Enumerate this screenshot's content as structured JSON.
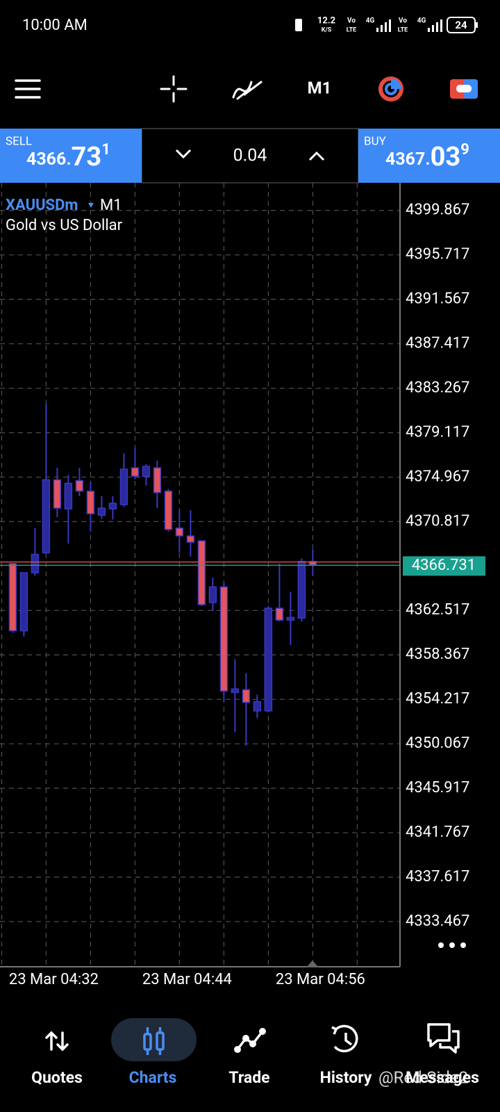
{
  "status_bar": {
    "time": "10:00 AM",
    "speed": "12.2",
    "speed_unit": "K/S",
    "sim1": "Vo",
    "sim1_sub": "LTE",
    "net1": "4G",
    "sim2": "Vo",
    "sim2_sub": "LTE",
    "net2": "4G",
    "battery": "24"
  },
  "toolbar": {
    "timeframe": "M1"
  },
  "trade_panel": {
    "sell": {
      "label": "SELL",
      "price": "4366.",
      "pips": "73",
      "point": "1"
    },
    "volume": "0.04",
    "buy": {
      "label": "BUY",
      "price": "4367.",
      "pips": "03",
      "point": "9"
    }
  },
  "chart_data": {
    "type": "candlestick",
    "symbol": "XAUUSDm",
    "timeframe": "M1",
    "description": "Gold vs US Dollar",
    "categories": [
      null,
      null,
      null,
      "23 Mar 04:32",
      null,
      null,
      null,
      null,
      null,
      null,
      null,
      null,
      null,
      null,
      null,
      "23 Mar 04:44",
      null,
      null,
      null,
      null,
      null,
      null,
      null,
      null,
      null,
      null,
      null,
      "23 Mar 04:56"
    ],
    "open": [
      4366.9,
      4360.62,
      4366.04,
      4367.9,
      4374.72,
      4372.0,
      4374.65,
      4373.66,
      4371.41,
      4372.0,
      4372.4,
      4375.84,
      4375.05,
      4375.84,
      4373.66,
      4370.21,
      4369.48,
      4369.02,
      4363.26,
      4364.72,
      4354.86,
      4355.12,
      4353.14,
      4353.14,
      4362.73,
      4361.61,
      4361.81,
      4367.1
    ],
    "high": [
      4366.9,
      4366.04,
      4370.21,
      4381.8,
      4375.84,
      4375.18,
      4375.84,
      4374.52,
      4373.19,
      4373.19,
      4377.17,
      4377.7,
      4376.17,
      4376.5,
      4373.86,
      4371.87,
      4371.87,
      4369.02,
      4365.58,
      4365.12,
      4357.97,
      4356.64,
      4354.66,
      4362.93,
      4366.9,
      4364.26,
      4367.37,
      4368.23
    ],
    "low": [
      4360.42,
      4360.09,
      4365.78,
      4367.76,
      4371.21,
      4368.76,
      4373.19,
      4369.88,
      4371.08,
      4371.01,
      4372.2,
      4374.78,
      4374.19,
      4372.07,
      4369.88,
      4367.9,
      4367.56,
      4362.93,
      4362.47,
      4354.0,
      4351.15,
      4349.9,
      4352.47,
      4353.0,
      4361.48,
      4359.29,
      4361.48,
      4365.78
    ],
    "close": [
      4360.62,
      4366.04,
      4367.76,
      4374.72,
      4372.07,
      4374.39,
      4373.66,
      4371.54,
      4372.07,
      4372.53,
      4375.71,
      4375.05,
      4375.97,
      4373.52,
      4370.08,
      4369.48,
      4368.89,
      4363.06,
      4364.72,
      4354.99,
      4355.19,
      4353.93,
      4354.0,
      4362.73,
      4361.61,
      4361.87,
      4367.1,
      4366.77
    ],
    "up_color": "#2a2a9e",
    "down_color": "#e4545e",
    "wick_color": "#3838c0",
    "ylim": [
      4329.25,
      4402.45
    ],
    "yticks": [
      4399.867,
      4395.717,
      4391.567,
      4387.417,
      4383.267,
      4379.117,
      4374.967,
      4370.817,
      4362.517,
      4358.367,
      4354.217,
      4350.067,
      4345.917,
      4341.767,
      4337.617,
      4333.467
    ],
    "grid": true,
    "bid": 4366.731,
    "bid_color": "#1aa08e",
    "ask": 4367.039,
    "ask_color": "#e04848"
  },
  "nav": {
    "items": [
      "Quotes",
      "Charts",
      "Trade",
      "History",
      "Messages"
    ],
    "active": 1
  },
  "watermark": "@Red-Side2"
}
